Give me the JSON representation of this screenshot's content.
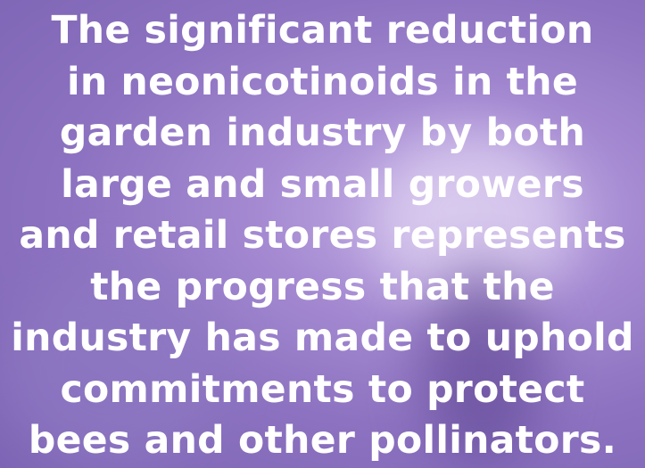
{
  "quote": {
    "lines": [
      "The significant reduction",
      "in neonicotinoids in the",
      "garden industry by both",
      "large and small growers",
      "and retail stores represents",
      "the progress that the",
      "industry has made to uphold",
      "commitments to protect",
      "bees and other pollinators."
    ]
  }
}
